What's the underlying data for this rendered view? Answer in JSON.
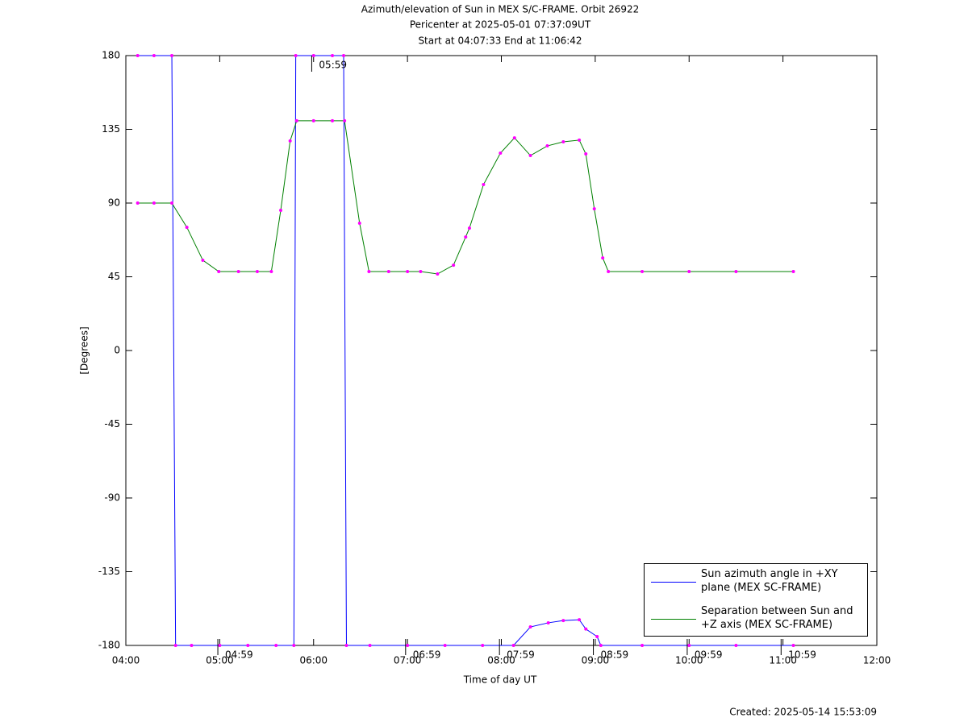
{
  "chart_data": {
    "type": "line",
    "title": [
      "Azimuth/elevation of Sun in MEX S/C-FRAME.  Orbit 26922",
      "Pericenter at 2025-05-01 07:37:09UT",
      "Start at 04:07:33 End at 11:06:42"
    ],
    "x_label": "Time of day UT",
    "y_label": "[Degrees]",
    "footer": "Created: 2025-05-14 15:53:09",
    "xlim": [
      4,
      12
    ],
    "xticks": [
      {
        "value": 4,
        "label": "04:00"
      },
      {
        "value": 5,
        "label": "05:00"
      },
      {
        "value": 6,
        "label": "06:00"
      },
      {
        "value": 7,
        "label": "07:00"
      },
      {
        "value": 8,
        "label": "08:00"
      },
      {
        "value": 9,
        "label": "09:00"
      },
      {
        "value": 10,
        "label": "10:00"
      },
      {
        "value": 11,
        "label": "11:00"
      },
      {
        "value": 12,
        "label": "12:00"
      }
    ],
    "ylim": [
      -180,
      180
    ],
    "yticks": [
      180,
      135,
      90,
      45,
      0,
      -45,
      -90,
      -135,
      -180
    ],
    "marker_color": "#ff00ff",
    "legend": "lower right",
    "series": [
      {
        "name": "Sun azimuth angle in +XY plane (MEX SC-FRAME)",
        "color": "#0000ff",
        "x": [
          4.126,
          4.3,
          4.49,
          4.53,
          4.7,
          5.0,
          5.3,
          5.6,
          5.79,
          5.81,
          6.0,
          6.2,
          6.32,
          6.35,
          6.6,
          7.0,
          7.4,
          7.8,
          8.13,
          8.31,
          8.5,
          8.66,
          8.83,
          8.9,
          9.02,
          9.06,
          9.5,
          10.0,
          10.5,
          11.111
        ],
        "values": [
          180,
          180,
          180,
          -180,
          -180,
          -180,
          -180,
          -180,
          -180,
          180,
          180,
          180,
          180,
          -180,
          -180,
          -180,
          -180,
          -180,
          -180,
          -168.7,
          -166.2,
          -164.8,
          -164.3,
          -170,
          -174.6,
          -180,
          -180,
          -180,
          -180,
          -180
        ]
      },
      {
        "name": "Separation between Sun and +Z axis (MEX SC-FRAME)",
        "color": "#008000",
        "x": [
          4.126,
          4.3,
          4.49,
          4.65,
          4.82,
          4.99,
          5.2,
          5.4,
          5.55,
          5.65,
          5.75,
          5.82,
          6.0,
          6.2,
          6.33,
          6.49,
          6.59,
          6.8,
          7.0,
          7.14,
          7.32,
          7.49,
          7.62,
          7.66,
          7.81,
          7.99,
          8.14,
          8.31,
          8.49,
          8.66,
          8.83,
          8.9,
          8.99,
          9.08,
          9.14,
          9.5,
          10.0,
          10.5,
          11.111
        ],
        "values": [
          90,
          90,
          90,
          75.2,
          55.1,
          48.2,
          48.2,
          48.2,
          48.2,
          85.6,
          127.9,
          140.2,
          140.2,
          140.2,
          140.2,
          77.7,
          48.2,
          48.2,
          48.2,
          48.2,
          46.7,
          52.1,
          69.3,
          74.7,
          101.3,
          120.5,
          129.8,
          119,
          124.9,
          127.4,
          128.4,
          120,
          86.5,
          56.5,
          48.2,
          48.2,
          48.2,
          48.2,
          48.2
        ]
      }
    ],
    "annotations": [
      {
        "text": "05:59",
        "x": 5.98,
        "y": 180
      },
      {
        "text": "04:59",
        "x": 4.98,
        "y": -180
      },
      {
        "text": "06:59",
        "x": 6.98,
        "y": -180
      },
      {
        "text": "07:59",
        "x": 7.98,
        "y": -180
      },
      {
        "text": "08:59",
        "x": 8.98,
        "y": -180
      },
      {
        "text": "09:59",
        "x": 9.98,
        "y": -180
      },
      {
        "text": "10:59",
        "x": 10.98,
        "y": -180
      }
    ]
  }
}
